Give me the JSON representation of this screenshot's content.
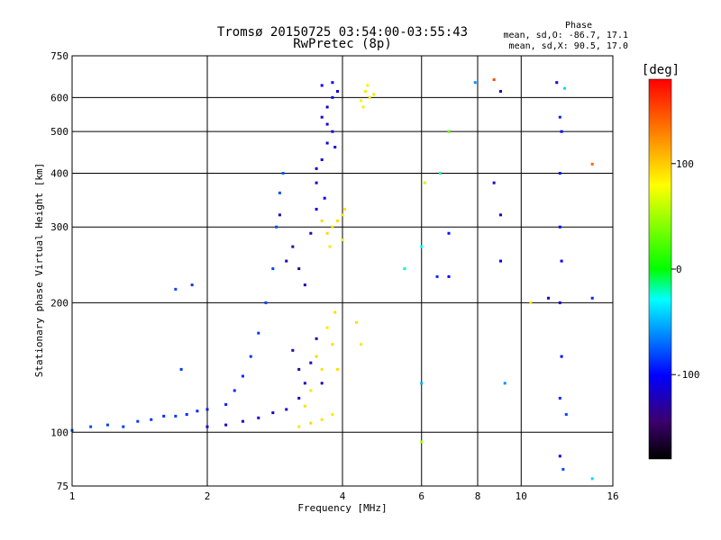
{
  "chart_data": {
    "type": "scatter",
    "title": "Tromsø 20150725 03:54:00-03:55:43",
    "subtitle": "RwPretec (8p)",
    "phase_header": "Phase",
    "phase_stats": [
      "mean, sd,O: -86.7, 17.1",
      "mean, sd,X:  90.5, 17.0"
    ],
    "xlabel": "Frequency [MHz]",
    "ylabel": "Stationary phase Virtual Height [km]",
    "x_scale": "log2",
    "y_scale": "log",
    "xlim": [
      1,
      16
    ],
    "ylim": [
      75,
      750
    ],
    "x_ticks": [
      1,
      2,
      4,
      6,
      8,
      10,
      16
    ],
    "y_ticks": [
      75,
      100,
      200,
      300,
      400,
      500,
      600,
      750
    ],
    "x_gridlines": [
      2,
      4,
      6,
      8,
      10
    ],
    "y_gridlines": [
      100,
      200,
      300,
      400,
      500,
      600
    ],
    "colorbar": {
      "label": "[deg]",
      "range": [
        -180,
        180
      ],
      "ticks": [
        100,
        0,
        -100
      ],
      "colors": [
        "#ff0000",
        "#ff7f00",
        "#ffff00",
        "#00ff00",
        "#00ffff",
        "#0000ff",
        "#3c006e",
        "#000000"
      ]
    },
    "series": [
      {
        "points": [
          [
            1.0,
            101,
            -80
          ],
          [
            1.1,
            103,
            -80
          ],
          [
            1.2,
            104,
            -82
          ],
          [
            1.3,
            103,
            -84
          ],
          [
            1.4,
            106,
            -85
          ],
          [
            1.5,
            107,
            -86
          ],
          [
            1.6,
            109,
            -88
          ],
          [
            1.7,
            109,
            -85
          ],
          [
            1.8,
            110,
            -88
          ],
          [
            1.9,
            112,
            -90
          ],
          [
            2.0,
            113,
            -92
          ],
          [
            2.2,
            116,
            -90
          ],
          [
            2.3,
            125,
            -88
          ],
          [
            2.4,
            135,
            -88
          ],
          [
            2.5,
            150,
            -86
          ],
          [
            2.6,
            170,
            -84
          ],
          [
            2.7,
            200,
            -82
          ],
          [
            2.8,
            240,
            -80
          ],
          [
            2.85,
            300,
            -80
          ],
          [
            2.9,
            360,
            -78
          ],
          [
            2.95,
            400,
            -76
          ],
          [
            1.75,
            140,
            -85
          ],
          [
            1.85,
            220,
            -85
          ],
          [
            1.7,
            215,
            -80
          ]
        ]
      },
      {
        "points": [
          [
            2.0,
            103,
            -110
          ],
          [
            2.2,
            104,
            -112
          ],
          [
            2.4,
            106,
            -112
          ],
          [
            2.6,
            108,
            -114
          ],
          [
            2.8,
            111,
            -115
          ],
          [
            3.0,
            113,
            -118
          ],
          [
            3.2,
            120,
            -115
          ],
          [
            3.3,
            130,
            -120
          ],
          [
            3.4,
            145,
            -118
          ],
          [
            3.5,
            165,
            -120
          ],
          [
            3.6,
            130,
            -125
          ],
          [
            3.2,
            140,
            -125
          ],
          [
            3.1,
            155,
            -126
          ],
          [
            3.0,
            250,
            -125
          ],
          [
            3.1,
            270,
            -125
          ],
          [
            3.2,
            240,
            -128
          ],
          [
            3.3,
            220,
            -118
          ],
          [
            3.4,
            290,
            -115
          ],
          [
            3.5,
            330,
            -112
          ],
          [
            3.5,
            380,
            -112
          ],
          [
            3.6,
            430,
            -110
          ],
          [
            3.7,
            470,
            -108
          ],
          [
            3.8,
            500,
            -108
          ],
          [
            3.6,
            540,
            -110
          ],
          [
            3.7,
            570,
            -108
          ],
          [
            3.8,
            600,
            -106
          ],
          [
            3.6,
            640,
            -105
          ],
          [
            3.8,
            650,
            -105
          ],
          [
            3.9,
            620,
            -108
          ],
          [
            2.9,
            320,
            -120
          ],
          [
            3.5,
            410,
            -110
          ],
          [
            3.65,
            350,
            -105
          ],
          [
            3.85,
            460,
            -105
          ],
          [
            3.7,
            520,
            -110
          ]
        ]
      },
      {
        "points": [
          [
            3.2,
            103,
            90
          ],
          [
            3.4,
            105,
            95
          ],
          [
            3.6,
            107,
            92
          ],
          [
            3.8,
            110,
            88
          ],
          [
            3.4,
            125,
            90
          ],
          [
            3.6,
            140,
            92
          ],
          [
            3.8,
            160,
            94
          ],
          [
            3.7,
            175,
            90
          ],
          [
            3.85,
            190,
            95
          ],
          [
            3.9,
            140,
            92
          ],
          [
            4.4,
            160,
            90
          ],
          [
            4.3,
            180,
            92
          ],
          [
            3.7,
            290,
            95
          ],
          [
            3.8,
            300,
            92
          ],
          [
            3.9,
            310,
            94
          ],
          [
            4.0,
            280,
            90
          ],
          [
            4.0,
            320,
            92
          ],
          [
            4.4,
            590,
            85
          ],
          [
            4.5,
            620,
            88
          ],
          [
            4.6,
            600,
            90
          ],
          [
            4.55,
            640,
            86
          ],
          [
            4.45,
            570,
            88
          ],
          [
            4.7,
            610,
            92
          ],
          [
            3.6,
            310,
            95
          ],
          [
            3.75,
            270,
            90
          ],
          [
            4.05,
            330,
            92
          ],
          [
            3.5,
            150,
            95
          ],
          [
            3.3,
            115,
            92
          ]
        ]
      },
      {
        "points": [
          [
            6.0,
            95,
            50
          ],
          [
            6.6,
            400,
            -20
          ],
          [
            6.9,
            500,
            30
          ],
          [
            6.9,
            230,
            -100
          ],
          [
            6.5,
            230,
            -90
          ],
          [
            6.9,
            290,
            -95
          ],
          [
            8.7,
            660,
            150
          ],
          [
            9.0,
            620,
            -120
          ],
          [
            9.0,
            250,
            -100
          ],
          [
            9.0,
            320,
            -110
          ],
          [
            8.7,
            380,
            -115
          ],
          [
            12.0,
            650,
            -110
          ],
          [
            12.5,
            630,
            -40
          ],
          [
            12.2,
            540,
            -90
          ],
          [
            12.3,
            500,
            -100
          ],
          [
            12.2,
            400,
            -95
          ],
          [
            12.2,
            300,
            -100
          ],
          [
            12.3,
            250,
            -105
          ],
          [
            12.2,
            200,
            -110
          ],
          [
            12.3,
            150,
            -100
          ],
          [
            12.2,
            120,
            -90
          ],
          [
            12.6,
            110,
            -80
          ],
          [
            12.2,
            88,
            -100
          ],
          [
            12.4,
            82,
            -80
          ],
          [
            14.4,
            420,
            140
          ],
          [
            14.4,
            205,
            -90
          ],
          [
            14.4,
            78,
            -40
          ],
          [
            11.5,
            205,
            -120
          ],
          [
            9.2,
            130,
            -60
          ],
          [
            10.5,
            200,
            90
          ],
          [
            7.9,
            650,
            -60
          ],
          [
            6.1,
            380,
            60
          ],
          [
            6.0,
            270,
            -30
          ],
          [
            5.5,
            240,
            -20
          ],
          [
            6.0,
            130,
            -50
          ]
        ]
      }
    ]
  }
}
